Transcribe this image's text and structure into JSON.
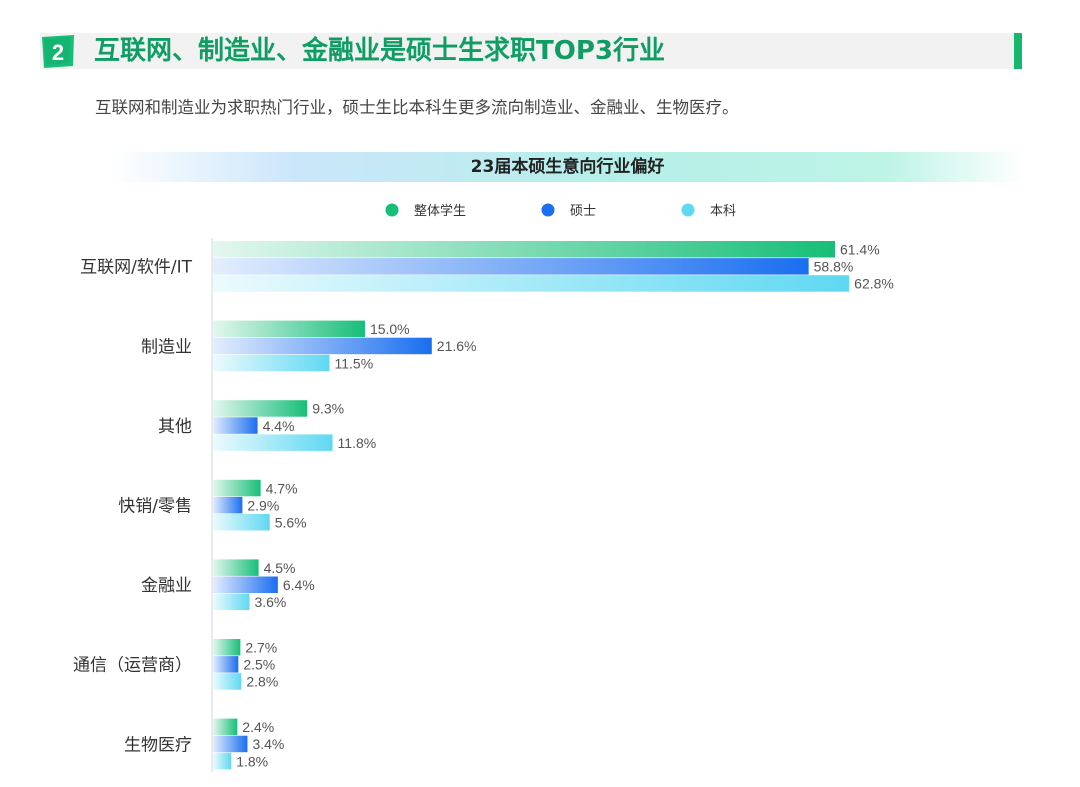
{
  "header": {
    "badge_number": "2",
    "title": "互联网、制造业、金融业是硕士生求职TOP3行业",
    "accent_color": "#16b86f"
  },
  "subtitle": "互联网和制造业为求职热门行业，硕士生比本科生更多流向制造业、金融业、生物医疗。",
  "chart_data": {
    "type": "bar",
    "orientation": "horizontal",
    "title": "23届本硕生意向行业偏好",
    "categories": [
      "互联网/软件/IT",
      "制造业",
      "其他",
      "快销/零售",
      "金融业",
      "通信（运营商）",
      "生物医疗"
    ],
    "series": [
      {
        "name": "整体学生",
        "color": "#17be78",
        "values": [
          61.4,
          15.0,
          9.3,
          4.7,
          4.5,
          2.7,
          2.4
        ],
        "labels": [
          "61.4%",
          "15.0%",
          "9.3%",
          "4.7%",
          "4.5%",
          "2.7%",
          "2.4%"
        ]
      },
      {
        "name": "硕士",
        "color": "#1a6ef0",
        "values": [
          58.8,
          21.6,
          4.4,
          2.9,
          6.4,
          2.5,
          3.4
        ],
        "labels": [
          "58.8%",
          "21.6%",
          "4.4%",
          "2.9%",
          "6.4%",
          "2.5%",
          "3.4%"
        ]
      },
      {
        "name": "本科",
        "color": "#5fd8f2",
        "values": [
          62.8,
          11.5,
          11.8,
          5.6,
          3.6,
          2.8,
          1.8
        ],
        "labels": [
          "62.8%",
          "11.5%",
          "11.8%",
          "5.6%",
          "3.6%",
          "2.8%",
          "1.8%"
        ]
      }
    ],
    "value_unit": "%",
    "legend_position": "top-center",
    "grid": false
  }
}
